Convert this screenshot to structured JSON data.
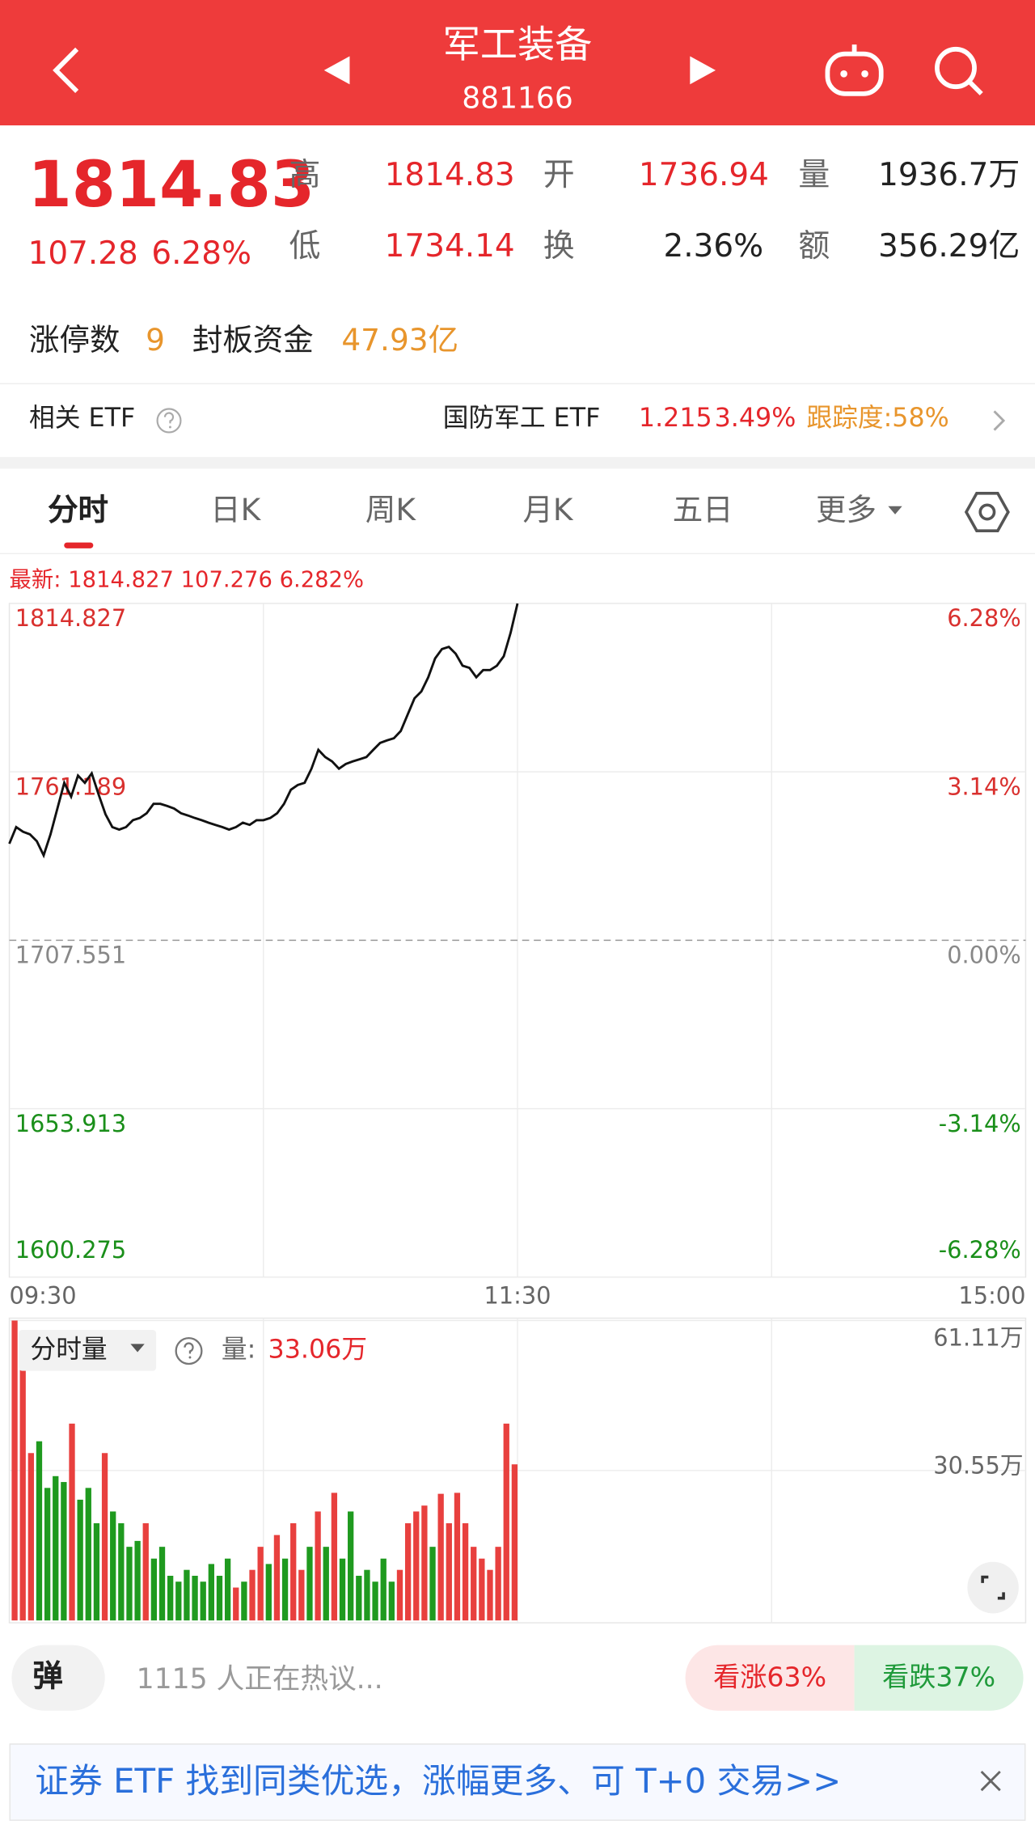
{
  "header": {
    "title": "军工装备",
    "code": "881166"
  },
  "quote": {
    "price": "1814.83",
    "change": "107.28",
    "change_pct": "6.28%",
    "stats": [
      {
        "label": "高",
        "value": "1814.83"
      },
      {
        "label": "开",
        "value": "1736.94"
      },
      {
        "label": "量",
        "value": "1936.7万"
      },
      {
        "label": "低",
        "value": "1734.14"
      },
      {
        "label": "换",
        "value": "2.36%"
      },
      {
        "label": "额",
        "value": "356.29亿"
      }
    ]
  },
  "limit_up": {
    "count_label": "涨停数",
    "count": "9",
    "fund_label": "封板资金",
    "fund": "47.93亿"
  },
  "etf": {
    "label": "相关 ETF",
    "name": "国防军工 ETF",
    "price": "1.215",
    "pct": "3.49%",
    "tracking": "跟踪度:58%"
  },
  "tabs": [
    "分时",
    "日K",
    "周K",
    "月K",
    "五日",
    "更多"
  ],
  "chart_data": [
    {
      "type": "line",
      "latest": "最新: 1814.827  107.276  6.282%",
      "x_labels": [
        "09:30",
        "11:30",
        "15:00"
      ],
      "ylim": [
        1600.275,
        1814.827
      ],
      "yticks": [
        1600.275,
        1653.913,
        1707.551,
        1761.189,
        1814.827
      ],
      "y2lim": [
        -6.28,
        6.28
      ],
      "y2ticks": [
        {
          "value": -6.28,
          "label": "-6.28%"
        },
        {
          "value": -3.14,
          "label": "-3.14%"
        },
        {
          "value": 0,
          "label": "0.00%"
        },
        {
          "value": 3.14,
          "label": "3.14%"
        },
        {
          "value": 6.28,
          "label": "6.28%"
        }
      ],
      "grid": true,
      "series": [
        {
          "color": "#111111",
          "values": [
            1738.3,
            1743.6,
            1742.1,
            1741.3,
            1739.1,
            1734.6,
            1741.3,
            1749.5,
            1757.7,
            1753.3,
            1760.0,
            1757.7,
            1760.7,
            1754.0,
            1747.7,
            1743.6,
            1742.8,
            1743.6,
            1745.8,
            1746.5,
            1748.0,
            1751.0,
            1751.0,
            1750.3,
            1749.5,
            1748.0,
            1747.3,
            1746.5,
            1745.8,
            1745.0,
            1744.3,
            1743.6,
            1742.8,
            1743.6,
            1745.0,
            1744.3,
            1745.8,
            1745.8,
            1746.5,
            1748.0,
            1751.0,
            1755.5,
            1757.0,
            1757.7,
            1762.2,
            1768.2,
            1765.9,
            1764.5,
            1762.2,
            1763.7,
            1764.5,
            1765.2,
            1765.9,
            1768.2,
            1770.4,
            1771.2,
            1771.9,
            1774.2,
            1779.4,
            1784.6,
            1786.8,
            1791.3,
            1797.3,
            1800.3,
            1801.0,
            1798.8,
            1795.0,
            1794.3,
            1791.3,
            1793.6,
            1793.6,
            1795.0,
            1798.0,
            1805.5,
            1814.8
          ]
        }
      ]
    },
    {
      "type": "bar",
      "label": "分时量",
      "volume_label": "量:",
      "volume_value": "33.06万",
      "ylim": [
        0,
        61.11
      ],
      "yticks": [
        {
          "value": 30.55,
          "label": "30.55万"
        },
        {
          "value": 61.11,
          "label": "61.11万"
        }
      ],
      "values": [
        61.1,
        53.2,
        34.1,
        36.5,
        27.0,
        29.4,
        28.2,
        40.1,
        24.6,
        27.0,
        19.8,
        34.1,
        22.2,
        19.8,
        15.0,
        16.2,
        19.8,
        12.6,
        15.0,
        9.1,
        7.9,
        10.3,
        9.1,
        7.9,
        11.5,
        9.1,
        12.6,
        6.7,
        7.9,
        10.3,
        15.0,
        11.5,
        17.4,
        12.6,
        19.8,
        10.3,
        15.0,
        22.2,
        15.0,
        26.0,
        12.6,
        22.2,
        9.1,
        10.3,
        7.9,
        12.6,
        7.9,
        10.3,
        19.8,
        22.2,
        23.4,
        15.0,
        25.8,
        19.8,
        26.0,
        19.8,
        15.0,
        12.6,
        10.3,
        15.0,
        40.1,
        31.8
      ],
      "colors": [
        "#e8403e",
        "#e8403e",
        "#e8403e",
        "#1f9a1f",
        "#1f9a1f",
        "#1f9a1f",
        "#1f9a1f",
        "#e8403e",
        "#1f9a1f",
        "#1f9a1f",
        "#1f9a1f",
        "#e8403e",
        "#1f9a1f",
        "#1f9a1f",
        "#1f9a1f",
        "#1f9a1f",
        "#e8403e",
        "#1f9a1f",
        "#1f9a1f",
        "#1f9a1f",
        "#1f9a1f",
        "#1f9a1f",
        "#1f9a1f",
        "#1f9a1f",
        "#1f9a1f",
        "#1f9a1f",
        "#1f9a1f",
        "#e8403e",
        "#1f9a1f",
        "#e8403e",
        "#e8403e",
        "#1f9a1f",
        "#e8403e",
        "#1f9a1f",
        "#e8403e",
        "#e8403e",
        "#1f9a1f",
        "#e8403e",
        "#1f9a1f",
        "#e8403e",
        "#1f9a1f",
        "#1f9a1f",
        "#1f9a1f",
        "#1f9a1f",
        "#1f9a1f",
        "#1f9a1f",
        "#1f9a1f",
        "#e8403e",
        "#e8403e",
        "#e8403e",
        "#e8403e",
        "#1f9a1f",
        "#e8403e",
        "#e8403e",
        "#e8403e",
        "#e8403e",
        "#e8403e",
        "#e8403e",
        "#e8403e",
        "#e8403e",
        "#e8403e",
        "#e8403e"
      ]
    }
  ],
  "comments": {
    "bullet": "弹",
    "hot": "1115 人正在热议...",
    "bull": "看涨63%",
    "bear": "看跌37%"
  },
  "banner": {
    "text": "证券 ETF 找到同类优选，涨幅更多、可 T+0 交易>>"
  }
}
